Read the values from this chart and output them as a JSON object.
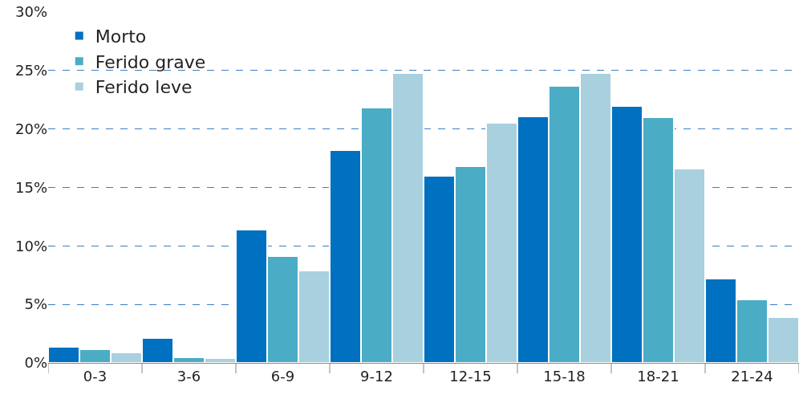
{
  "chart_data": {
    "type": "bar",
    "categories": [
      "0-3",
      "3-6",
      "6-9",
      "9-12",
      "12-15",
      "15-18",
      "18-21",
      "21-24"
    ],
    "series": [
      {
        "name": "Morto",
        "color": "#0070c0",
        "values": [
          1.4,
          2.1,
          11.4,
          18.2,
          16.0,
          21.1,
          22.0,
          7.2
        ]
      },
      {
        "name": "Ferido grave",
        "color": "#4bacc6",
        "values": [
          1.2,
          0.5,
          9.1,
          21.8,
          16.8,
          23.7,
          21.0,
          5.4
        ]
      },
      {
        "name": "Ferido leve",
        "color": "#a8d0de",
        "values": [
          0.9,
          0.4,
          7.9,
          24.8,
          20.5,
          24.8,
          16.6,
          3.9
        ]
      }
    ],
    "ylim": [
      0,
      30
    ],
    "yticks": [
      {
        "value": 0,
        "label": "0%"
      },
      {
        "value": 5,
        "label": "5%"
      },
      {
        "value": 10,
        "label": "10%"
      },
      {
        "value": 15,
        "label": "15%"
      },
      {
        "value": 20,
        "label": "20%"
      },
      {
        "value": 25,
        "label": "25%"
      },
      {
        "value": 30,
        "label": "30%"
      }
    ],
    "grid": "y",
    "legend": "top left"
  }
}
